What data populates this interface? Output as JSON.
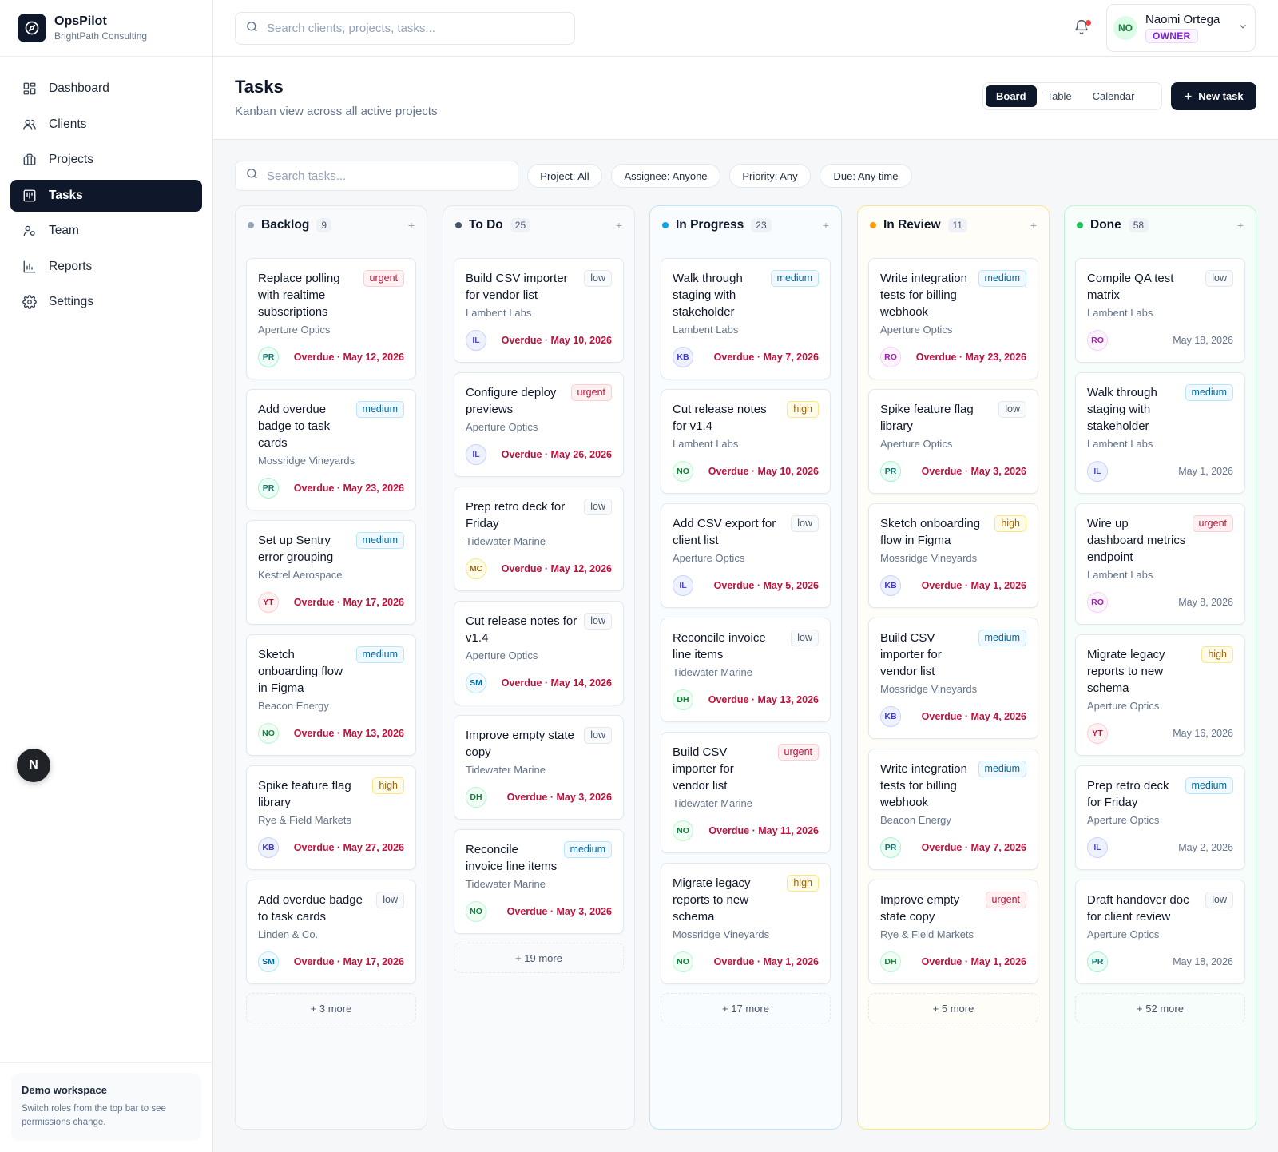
{
  "brand": {
    "name": "OpsPilot",
    "subtitle": "BrightPath Consulting"
  },
  "nav": [
    {
      "label": "Dashboard",
      "icon": "dashboard-icon",
      "active": false
    },
    {
      "label": "Clients",
      "icon": "users-icon",
      "active": false
    },
    {
      "label": "Projects",
      "icon": "briefcase-icon",
      "active": false
    },
    {
      "label": "Tasks",
      "icon": "kanban-icon",
      "active": true
    },
    {
      "label": "Team",
      "icon": "team-icon",
      "active": false
    },
    {
      "label": "Reports",
      "icon": "bar-chart-icon",
      "active": false
    },
    {
      "label": "Settings",
      "icon": "gear-icon",
      "active": false
    }
  ],
  "demo": {
    "title": "Demo workspace",
    "text": "Switch roles from the top bar to see permissions change."
  },
  "floating": {
    "letter": "N"
  },
  "topbar": {
    "search_placeholder": "Search clients, projects, tasks...",
    "user": {
      "initials": "NO",
      "name": "Naomi Ortega",
      "role": "OWNER"
    }
  },
  "page": {
    "title": "Tasks",
    "subtitle": "Kanban view across all active projects",
    "views": [
      "Board",
      "Table",
      "Calendar"
    ],
    "active_view": "Board",
    "new_task_label": "New task"
  },
  "filters": {
    "search_placeholder": "Search tasks...",
    "chips": [
      "Project: All",
      "Assignee: Anyone",
      "Priority: Any",
      "Due: Any time"
    ]
  },
  "avatar_colors": {
    "PR": [
      "#ecfdf5",
      "#0f766e",
      "#a7f3d0"
    ],
    "IL": [
      "#eef2ff",
      "#4f46e5",
      "#c7d2fe"
    ],
    "KB": [
      "#eef2ff",
      "#4338ca",
      "#c7d2fe"
    ],
    "YT": [
      "#fff1f2",
      "#be123c",
      "#fecdd3"
    ],
    "NO": [
      "#f0fdf4",
      "#15803d",
      "#bbf7d0"
    ],
    "SM": [
      "#f0f9ff",
      "#0369a1",
      "#bae6fd"
    ],
    "MC": [
      "#fefce8",
      "#a16207",
      "#fde68a"
    ],
    "DH": [
      "#f0fdf4",
      "#15803d",
      "#bbf7d0"
    ],
    "RO": [
      "#fdf4ff",
      "#a21caf",
      "#f5d0fe"
    ]
  },
  "columns": [
    {
      "title": "Backlog",
      "count": "9",
      "dot": "#94a3b8",
      "variant": "",
      "more": "+ 3 more",
      "cards": [
        {
          "title": "Replace polling with realtime subscriptions",
          "priority": "urgent",
          "client": "Aperture Optics",
          "assignee": "PR",
          "due": "Overdue · May 12, 2026",
          "overdue": true
        },
        {
          "title": "Add overdue badge to task cards",
          "priority": "medium",
          "client": "Mossridge Vineyards",
          "assignee": "PR",
          "due": "Overdue · May 23, 2026",
          "overdue": true
        },
        {
          "title": "Set up Sentry error grouping",
          "priority": "medium",
          "client": "Kestrel Aerospace",
          "assignee": "YT",
          "due": "Overdue · May 17, 2026",
          "overdue": true
        },
        {
          "title": "Sketch onboarding flow in Figma",
          "priority": "medium",
          "client": "Beacon Energy",
          "assignee": "NO",
          "due": "Overdue · May 13, 2026",
          "overdue": true
        },
        {
          "title": "Spike feature flag library",
          "priority": "high",
          "client": "Rye & Field Markets",
          "assignee": "KB",
          "due": "Overdue · May 27, 2026",
          "overdue": true
        },
        {
          "title": "Add overdue badge to task cards",
          "priority": "low",
          "client": "Linden & Co.",
          "assignee": "SM",
          "due": "Overdue · May 17, 2026",
          "overdue": true
        }
      ]
    },
    {
      "title": "To Do",
      "count": "25",
      "dot": "#475569",
      "variant": "",
      "more": "+ 19 more",
      "cards": [
        {
          "title": "Build CSV importer for vendor list",
          "priority": "low",
          "client": "Lambent Labs",
          "assignee": "IL",
          "due": "Overdue · May 10, 2026",
          "overdue": true
        },
        {
          "title": "Configure deploy previews",
          "priority": "urgent",
          "client": "Aperture Optics",
          "assignee": "IL",
          "due": "Overdue · May 26, 2026",
          "overdue": true
        },
        {
          "title": "Prep retro deck for Friday",
          "priority": "low",
          "client": "Tidewater Marine",
          "assignee": "MC",
          "due": "Overdue · May 12, 2026",
          "overdue": true
        },
        {
          "title": "Cut release notes for v1.4",
          "priority": "low",
          "client": "Aperture Optics",
          "assignee": "SM",
          "due": "Overdue · May 14, 2026",
          "overdue": true
        },
        {
          "title": "Improve empty state copy",
          "priority": "low",
          "client": "Tidewater Marine",
          "assignee": "DH",
          "due": "Overdue · May 3, 2026",
          "overdue": true
        },
        {
          "title": "Reconcile invoice line items",
          "priority": "medium",
          "client": "Tidewater Marine",
          "assignee": "NO",
          "due": "Overdue · May 3, 2026",
          "overdue": true
        }
      ]
    },
    {
      "title": "In Progress",
      "count": "23",
      "dot": "#0ea5e9",
      "variant": "prog",
      "more": "+ 17 more",
      "cards": [
        {
          "title": "Walk through staging with stakeholder",
          "priority": "medium",
          "client": "Lambent Labs",
          "assignee": "KB",
          "due": "Overdue · May 7, 2026",
          "overdue": true
        },
        {
          "title": "Cut release notes for v1.4",
          "priority": "high",
          "client": "Lambent Labs",
          "assignee": "NO",
          "due": "Overdue · May 10, 2026",
          "overdue": true
        },
        {
          "title": "Add CSV export for client list",
          "priority": "low",
          "client": "Aperture Optics",
          "assignee": "IL",
          "due": "Overdue · May 5, 2026",
          "overdue": true
        },
        {
          "title": "Reconcile invoice line items",
          "priority": "low",
          "client": "Tidewater Marine",
          "assignee": "DH",
          "due": "Overdue · May 13, 2026",
          "overdue": true
        },
        {
          "title": "Build CSV importer for vendor list",
          "priority": "urgent",
          "client": "Tidewater Marine",
          "assignee": "NO",
          "due": "Overdue · May 11, 2026",
          "overdue": true
        },
        {
          "title": "Migrate legacy reports to new schema",
          "priority": "high",
          "client": "Mossridge Vineyards",
          "assignee": "NO",
          "due": "Overdue · May 1, 2026",
          "overdue": true
        }
      ]
    },
    {
      "title": "In Review",
      "count": "11",
      "dot": "#f59e0b",
      "variant": "review",
      "more": "+ 5 more",
      "cards": [
        {
          "title": "Write integration tests for billing webhook",
          "priority": "medium",
          "client": "Aperture Optics",
          "assignee": "RO",
          "due": "Overdue · May 23, 2026",
          "overdue": true
        },
        {
          "title": "Spike feature flag library",
          "priority": "low",
          "client": "Aperture Optics",
          "assignee": "PR",
          "due": "Overdue · May 3, 2026",
          "overdue": true
        },
        {
          "title": "Sketch onboarding flow in Figma",
          "priority": "high",
          "client": "Mossridge Vineyards",
          "assignee": "KB",
          "due": "Overdue · May 1, 2026",
          "overdue": true
        },
        {
          "title": "Build CSV importer for vendor list",
          "priority": "medium",
          "client": "Mossridge Vineyards",
          "assignee": "KB",
          "due": "Overdue · May 4, 2026",
          "overdue": true
        },
        {
          "title": "Write integration tests for billing webhook",
          "priority": "medium",
          "client": "Beacon Energy",
          "assignee": "PR",
          "due": "Overdue · May 7, 2026",
          "overdue": true
        },
        {
          "title": "Improve empty state copy",
          "priority": "urgent",
          "client": "Rye & Field Markets",
          "assignee": "DH",
          "due": "Overdue · May 1, 2026",
          "overdue": true
        }
      ]
    },
    {
      "title": "Done",
      "count": "58",
      "dot": "#22c55e",
      "variant": "done",
      "more": "+ 52 more",
      "cards": [
        {
          "title": "Compile QA test matrix",
          "priority": "low",
          "client": "Lambent Labs",
          "assignee": "RO",
          "due": "May 18, 2026",
          "overdue": false
        },
        {
          "title": "Walk through staging with stakeholder",
          "priority": "medium",
          "client": "Lambent Labs",
          "assignee": "IL",
          "due": "May 1, 2026",
          "overdue": false
        },
        {
          "title": "Wire up dashboard metrics endpoint",
          "priority": "urgent",
          "client": "Lambent Labs",
          "assignee": "RO",
          "due": "May 8, 2026",
          "overdue": false
        },
        {
          "title": "Migrate legacy reports to new schema",
          "priority": "high",
          "client": "Aperture Optics",
          "assignee": "YT",
          "due": "May 16, 2026",
          "overdue": false
        },
        {
          "title": "Prep retro deck for Friday",
          "priority": "medium",
          "client": "Aperture Optics",
          "assignee": "IL",
          "due": "May 2, 2026",
          "overdue": false
        },
        {
          "title": "Draft handover doc for client review",
          "priority": "low",
          "client": "Aperture Optics",
          "assignee": "PR",
          "due": "May 18, 2026",
          "overdue": false
        }
      ]
    }
  ]
}
